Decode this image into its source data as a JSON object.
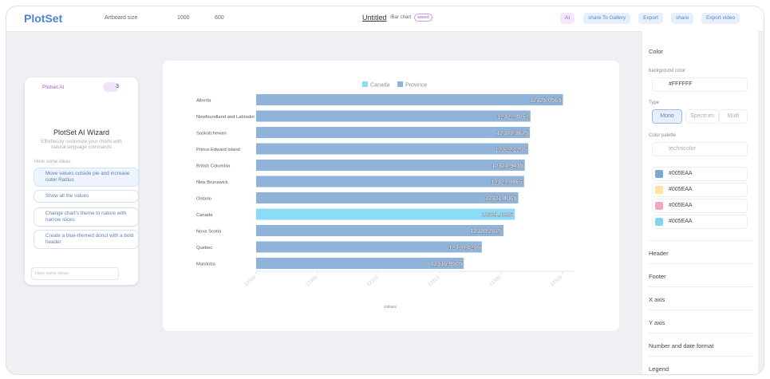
{
  "toolbar": {
    "logo": "PlotSet",
    "artboard_label": "Artboard size",
    "width": "1000",
    "height": "600",
    "title": "Untitled",
    "subtitle": "/Bar chart",
    "badge": "saved",
    "buttons": [
      "AI",
      "share To Gallery",
      "Export",
      "share",
      "Export video"
    ]
  },
  "ai_panel": {
    "title": "Plotset AI",
    "credits": "3",
    "heading": "PlotSet AI Wizard",
    "description": "Effortlessly customize your charts with natural language commands",
    "ideas_label": "Here some ideas:",
    "ideas": [
      "Move values outside pie and increase outer Radius",
      "Show all the values",
      "Change chart's theme to nature with narrow slices",
      "Create a blue-themed donut with a bold header"
    ],
    "input_placeholder": "Here some ideas"
  },
  "chart_data": {
    "type": "bar",
    "orientation": "horizontal",
    "x_label": "values",
    "categories": [
      "Alberta",
      "Newfoundland and Labrador",
      "Saskatchewan",
      "Prince Edward Island",
      "British Columbia",
      "New Brunswick",
      "Ontario",
      "Canada",
      "Nova Scotia",
      "Quebec",
      "Manitoba"
    ],
    "series": [
      {
        "name": "Canada",
        "color": "#8ddcf7",
        "values": [
          null,
          null,
          null,
          null,
          null,
          null,
          null,
          12321.1285,
          null,
          null,
          null
        ]
      },
      {
        "name": "Province",
        "color": "#8fb3d9",
        "values": [
          12325.0565,
          12322.4051,
          12322.3625,
          12322.2295,
          12321.9435,
          12321.8865,
          12321.4065,
          null,
          12320.2015,
          12318.4295,
          12316.9565
        ]
      }
    ],
    "xlim": [
      12300,
      12326
    ],
    "xticks": [
      12300,
      12305,
      12310,
      12315,
      12320,
      12325
    ]
  },
  "settings": {
    "color_section": "Color",
    "bg_label": "background color",
    "bg_value": "#FFFFFF",
    "type_label": "Type",
    "type_options": [
      "Mono",
      "Spectrum",
      "Multi"
    ],
    "palette_label": "Color palette",
    "palette_name": "technicolor",
    "swatches": [
      {
        "color": "#7fa7d3",
        "label": "#005EAA"
      },
      {
        "color": "#fbe3a0",
        "label": "#005EAA"
      },
      {
        "color": "#f4a6c7",
        "label": "#005EAA"
      },
      {
        "color": "#7dd6f2",
        "label": "#005EAA"
      }
    ],
    "sections": [
      "Header",
      "Footer",
      "X axis",
      "Y axis",
      "Number and date format",
      "Legend"
    ]
  }
}
